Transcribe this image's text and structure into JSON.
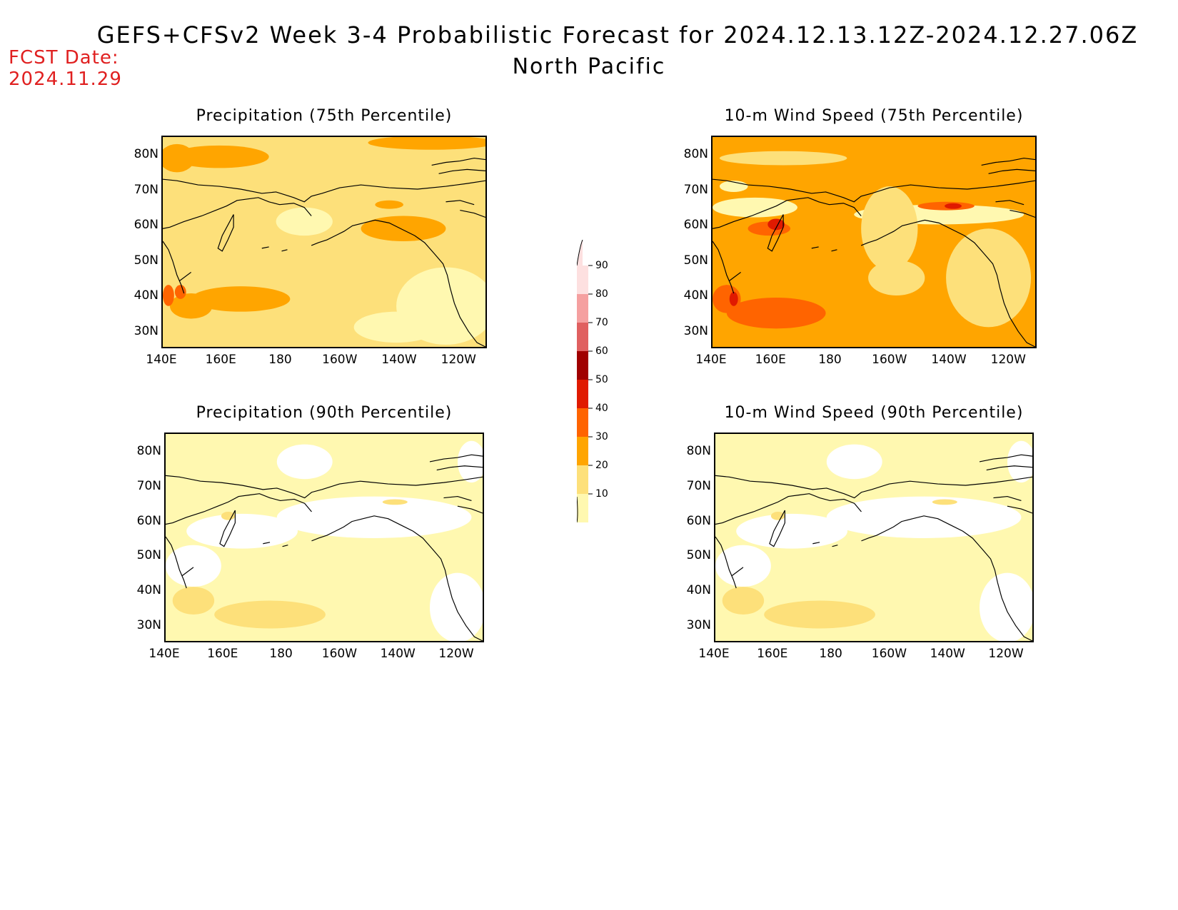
{
  "header": {
    "title": "GEFS+CFSv2 Week 3-4 Probabilistic Forecast for 2024.12.13.12Z-2024.12.27.06Z",
    "subtitle": "North Pacific",
    "fcst_label_line1": "FCST Date:",
    "fcst_label_line2": "2024.11.29"
  },
  "panels": [
    {
      "id": "precip75",
      "title": "Precipitation (75th Percentile)",
      "level": "high"
    },
    {
      "id": "wind75",
      "title": "10-m Wind Speed (75th Percentile)",
      "level": "very-high"
    },
    {
      "id": "precip90",
      "title": "Precipitation (90th Percentile)",
      "level": "low"
    },
    {
      "id": "wind90",
      "title": "10-m Wind Speed (90th Percentile)",
      "level": "low"
    }
  ],
  "axes": {
    "lat_labels": [
      "80N",
      "70N",
      "60N",
      "50N",
      "40N",
      "30N"
    ],
    "lon_labels": [
      "140E",
      "160E",
      "180",
      "160W",
      "140W",
      "120W"
    ]
  },
  "colorbar": {
    "labels": [
      "90",
      "80",
      "70",
      "60",
      "50",
      "40",
      "30",
      "20",
      "10"
    ],
    "colors": [
      "#fde0e0",
      "#f5a0a0",
      "#e06060",
      "#a00000",
      "#e01a00",
      "#ff6400",
      "#ffa500",
      "#fde07a",
      "#fff8b0"
    ]
  },
  "colors": {
    "c10": "#fff8b0",
    "c20": "#fde07a",
    "c30": "#ffa500",
    "c40": "#ff6400",
    "c50": "#e01a00",
    "c60": "#a00000",
    "fcst_red": "#e02020"
  }
}
